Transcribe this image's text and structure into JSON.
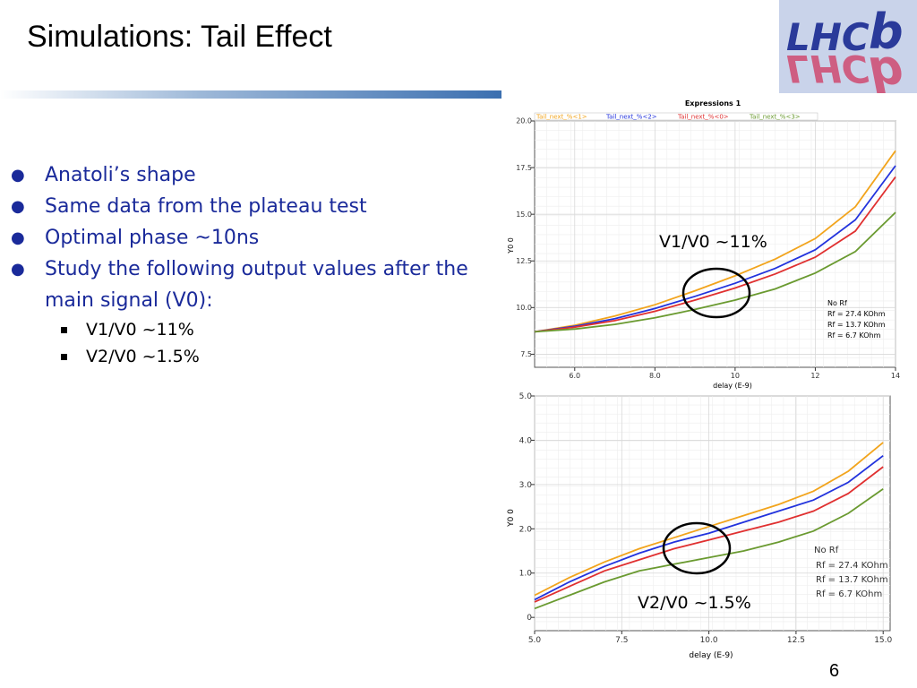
{
  "slide": {
    "title": "Simulations: Tail Effect",
    "page_number": "6",
    "logo_text": "LHCb",
    "bullets": [
      "Anatoli’s shape",
      "Same data from the plateau test",
      "Optimal phase ~10ns",
      "Study the following output values after the main signal (V0):"
    ],
    "sub_bullets": [
      "V1/V0 ~11%",
      "V2/V0 ~1.5%"
    ],
    "colors": {
      "orange": "#f2a41c",
      "blue": "#2233dd",
      "red": "#e03030",
      "green": "#6a9a30",
      "bullet_text": "#1a2a9a"
    }
  },
  "chart_data": [
    {
      "type": "line",
      "panel_title": "Expressions 1",
      "xlabel": "delay (E-9)",
      "ylabel": "Y0 0",
      "xlim": [
        5.0,
        14.0
      ],
      "ylim": [
        6.8,
        20.0
      ],
      "xticks": [
        "6.0",
        "8.0",
        "10",
        "12",
        "14"
      ],
      "xtick_values": [
        6,
        8,
        10,
        12,
        14
      ],
      "yticks": [
        "7.5",
        "10.0",
        "12.5",
        "15.0",
        "17.5",
        "20.0"
      ],
      "ytick_values": [
        7.5,
        10.0,
        12.5,
        15.0,
        17.5,
        20.0
      ],
      "grid": true,
      "legend_entries": [
        "Tail_next_%<1>",
        "Tail_next_%<2>",
        "Tail_next_%<0>",
        "Tail_next_%<3>"
      ],
      "annotation": "V1/V0 ~11%",
      "rf_labels": [
        "No Rf",
        "Rf = 27.4 KOhm",
        "Rf = 13.7 KOhm",
        "Rf = 6.7 KOhm"
      ],
      "x": [
        5,
        6,
        7,
        8,
        9,
        10,
        11,
        12,
        13,
        14
      ],
      "series": [
        {
          "name": "Tail_next_%<1>",
          "color": "#f2a41c",
          "values": [
            8.7,
            9.05,
            9.55,
            10.15,
            10.9,
            11.7,
            12.6,
            13.7,
            15.4,
            18.4
          ]
        },
        {
          "name": "Tail_next_%<2>",
          "color": "#2233dd",
          "values": [
            8.7,
            9.0,
            9.4,
            9.95,
            10.6,
            11.3,
            12.1,
            13.1,
            14.7,
            17.6
          ]
        },
        {
          "name": "Tail_next_%<0>",
          "color": "#e03030",
          "values": [
            8.7,
            8.95,
            9.3,
            9.8,
            10.4,
            11.05,
            11.8,
            12.7,
            14.1,
            17.0
          ]
        },
        {
          "name": "Tail_next_%<3>",
          "color": "#6a9a30",
          "values": [
            8.7,
            8.85,
            9.1,
            9.45,
            9.9,
            10.4,
            11.0,
            11.85,
            13.0,
            15.1
          ]
        }
      ]
    },
    {
      "type": "line",
      "xlabel": "delay (E-9)",
      "ylabel": "Y0 0",
      "xlim": [
        5.0,
        15.2
      ],
      "ylim": [
        -0.3,
        5.0
      ],
      "xticks": [
        "5.0",
        "7.5",
        "10.0",
        "12.5",
        "15.0"
      ],
      "xtick_values": [
        5.0,
        7.5,
        10.0,
        12.5,
        15.0
      ],
      "yticks": [
        "0",
        "1.0",
        "2.0",
        "3.0",
        "4.0",
        "5.0"
      ],
      "ytick_values": [
        0,
        1.0,
        2.0,
        3.0,
        4.0,
        5.0
      ],
      "grid": true,
      "annotation": "V2/V0 ~1.5%",
      "rf_labels": [
        "No Rf",
        "Rf = 27.4 KOhm",
        "Rf = 13.7 KOhm",
        "Rf = 6.7 KOhm"
      ],
      "x": [
        5,
        6,
        7,
        8,
        9,
        10,
        11,
        12,
        13,
        14,
        15
      ],
      "series": [
        {
          "color": "#f2a41c",
          "values": [
            0.5,
            0.9,
            1.25,
            1.55,
            1.8,
            2.05,
            2.3,
            2.55,
            2.85,
            3.3,
            3.95
          ]
        },
        {
          "color": "#2233dd",
          "values": [
            0.4,
            0.8,
            1.15,
            1.45,
            1.7,
            1.9,
            2.15,
            2.4,
            2.65,
            3.05,
            3.65
          ]
        },
        {
          "color": "#e03030",
          "values": [
            0.35,
            0.7,
            1.05,
            1.3,
            1.55,
            1.75,
            1.95,
            2.15,
            2.4,
            2.8,
            3.4
          ]
        },
        {
          "color": "#6a9a30",
          "values": [
            0.2,
            0.5,
            0.8,
            1.05,
            1.2,
            1.35,
            1.5,
            1.7,
            1.95,
            2.35,
            2.9
          ]
        }
      ]
    }
  ]
}
